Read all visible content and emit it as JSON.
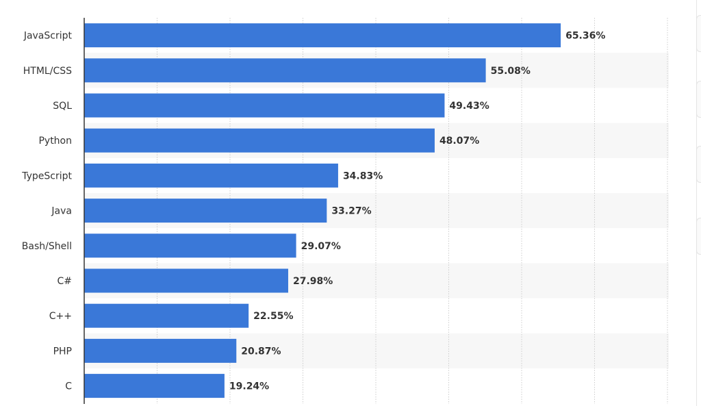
{
  "chart_data": {
    "type": "bar",
    "orientation": "horizontal",
    "categories": [
      "JavaScript",
      "HTML/CSS",
      "SQL",
      "Python",
      "TypeScript",
      "Java",
      "Bash/Shell",
      "C#",
      "C++",
      "PHP",
      "C"
    ],
    "values": [
      65.36,
      55.08,
      49.43,
      48.07,
      34.83,
      33.27,
      29.07,
      27.98,
      22.55,
      20.87,
      19.24
    ],
    "value_labels": [
      "65.36%",
      "55.08%",
      "49.43%",
      "48.07%",
      "34.83%",
      "33.27%",
      "29.07%",
      "27.98%",
      "22.55%",
      "20.87%",
      "19.24%"
    ],
    "xlim": [
      0,
      80
    ],
    "x_gridlines": [
      10,
      20,
      30,
      40,
      50,
      60,
      70,
      80
    ],
    "grid": true,
    "title": "",
    "xlabel": "",
    "ylabel": "",
    "colors": {
      "bar": "#3a78d8",
      "band": "#f7f7f7",
      "grid": "#cccccc",
      "axis": "#333333"
    }
  }
}
